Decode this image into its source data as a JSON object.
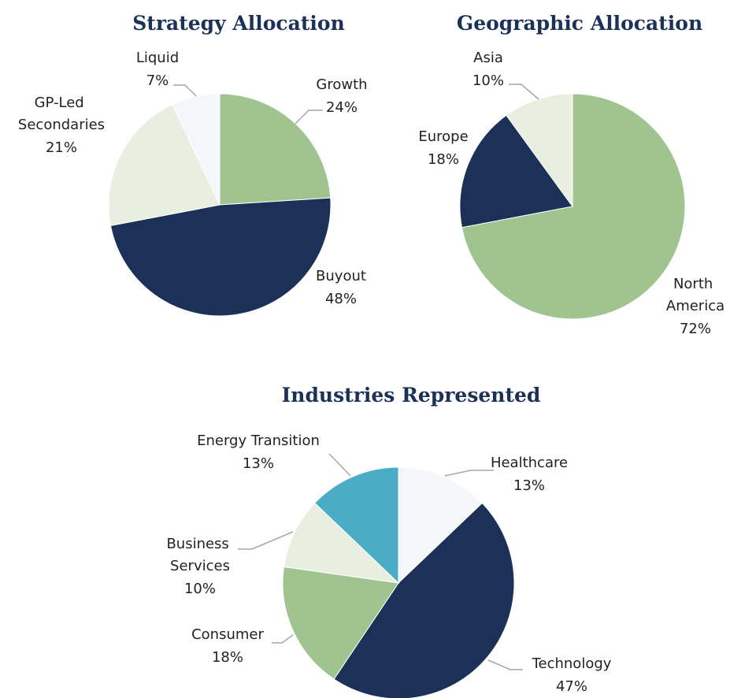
{
  "chart_data": [
    {
      "type": "pie",
      "title": "Strategy Allocation",
      "categories": [
        "Growth",
        "Buyout",
        "GP-Led Secondaries",
        "Liquid"
      ],
      "values": [
        24,
        48,
        21,
        7
      ],
      "value_labels": [
        "24%",
        "48%",
        "21%",
        "7%"
      ],
      "colors": [
        "#a0c490",
        "#1c3158",
        "#e9efe0",
        "#f4f6f9"
      ]
    },
    {
      "type": "pie",
      "title": "Geographic Allocation",
      "categories": [
        "North America",
        "Europe",
        "Asia"
      ],
      "values": [
        72,
        18,
        10
      ],
      "value_labels": [
        "72%",
        "18%",
        "10%"
      ],
      "colors": [
        "#a0c490",
        "#1c3158",
        "#e9efe0"
      ]
    },
    {
      "type": "pie",
      "title": "Industries Represented",
      "categories": [
        "Healthcare",
        "Technology",
        "Consumer",
        "Business Services",
        "Energy Transition"
      ],
      "values": [
        13,
        47,
        18,
        10,
        13
      ],
      "value_labels": [
        "13%",
        "47%",
        "18%",
        "10%",
        "13%"
      ],
      "colors": [
        "#f4f6f9",
        "#1c3158",
        "#a0c490",
        "#e9efe0",
        "#4bacc6"
      ]
    }
  ]
}
